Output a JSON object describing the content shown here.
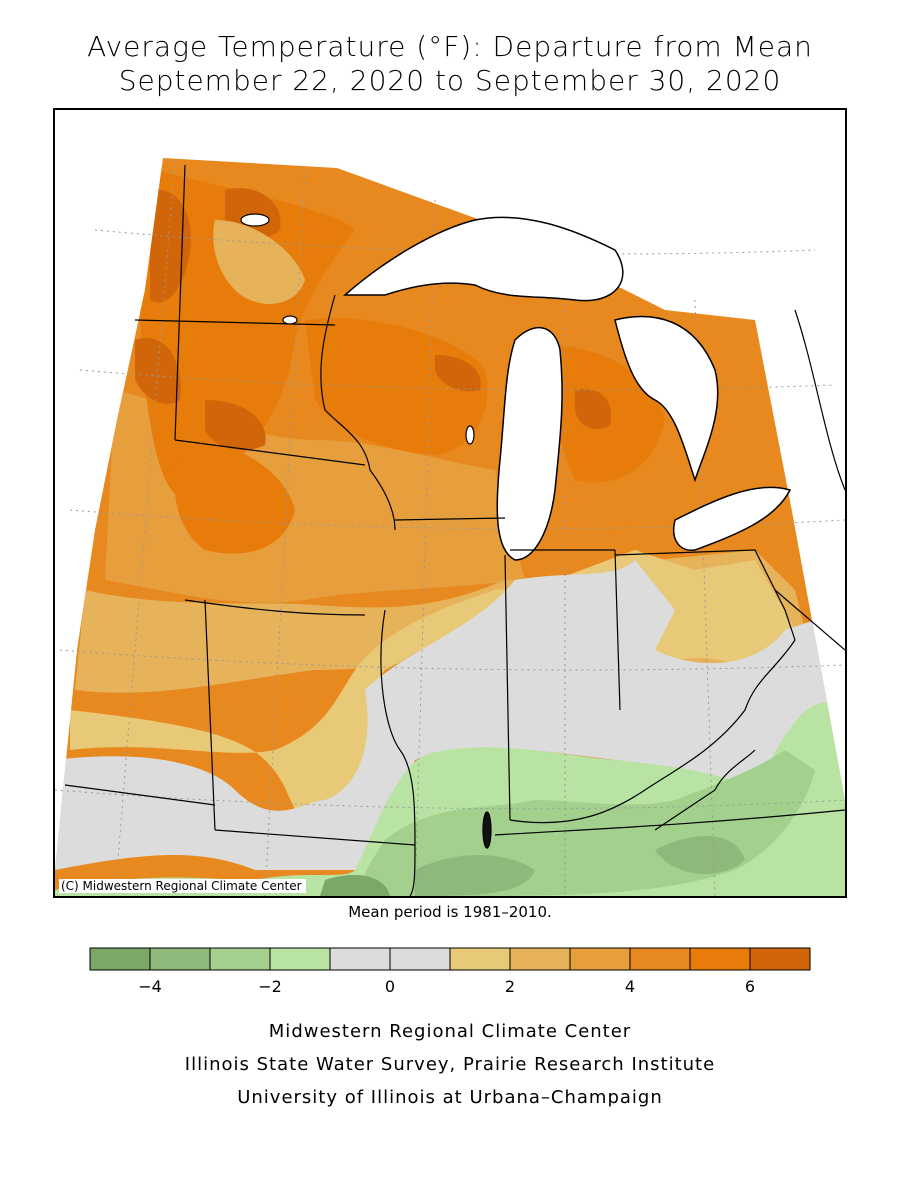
{
  "title": {
    "line1": "Average Temperature (°F): Departure from Mean",
    "line2": "September 22, 2020 to September 30, 2020"
  },
  "map": {
    "copyright": "(C) Midwestern Regional Climate Center",
    "features": [
      "states-boundaries",
      "great-lakes",
      "lat-lon-graticule"
    ],
    "pattern": "Warmest departures (+5 to +7 °F) across Minnesota, Wisconsin and northern Michigan; near normal across central Illinois, Indiana and Ohio; cooler than normal (-1 to -4 °F) across southern Illinois, Kentucky and Tennessee border."
  },
  "mean_period": "Mean period is 1981–2010.",
  "legend": {
    "units": "°F",
    "bins": [
      {
        "range": [
          -5,
          -4
        ],
        "color": "#7aa866"
      },
      {
        "range": [
          -4,
          -3
        ],
        "color": "#8fb97a"
      },
      {
        "range": [
          -3,
          -2
        ],
        "color": "#a3d08d"
      },
      {
        "range": [
          -2,
          -1
        ],
        "color": "#b9e3a2"
      },
      {
        "range": [
          -1,
          0
        ],
        "color": "#dcdcdc"
      },
      {
        "range": [
          0,
          1
        ],
        "color": "#dcdcdc"
      },
      {
        "range": [
          1,
          2
        ],
        "color": "#e8c978"
      },
      {
        "range": [
          2,
          3
        ],
        "color": "#e6b25a"
      },
      {
        "range": [
          3,
          4
        ],
        "color": "#e79e3c"
      },
      {
        "range": [
          4,
          5
        ],
        "color": "#e8891f"
      },
      {
        "range": [
          5,
          6
        ],
        "color": "#e77c0b"
      },
      {
        "range": [
          6,
          7
        ],
        "color": "#d0650a"
      }
    ],
    "tick_labels": [
      "−4",
      "−2",
      "0",
      "2",
      "4",
      "6"
    ],
    "tick_values": [
      -4,
      -2,
      0,
      2,
      4,
      6
    ]
  },
  "credits": {
    "line1": "Midwestern Regional Climate Center",
    "line2": "Illinois State Water Survey, Prairie Research Institute",
    "line3": "University of Illinois at Urbana–Champaign"
  }
}
